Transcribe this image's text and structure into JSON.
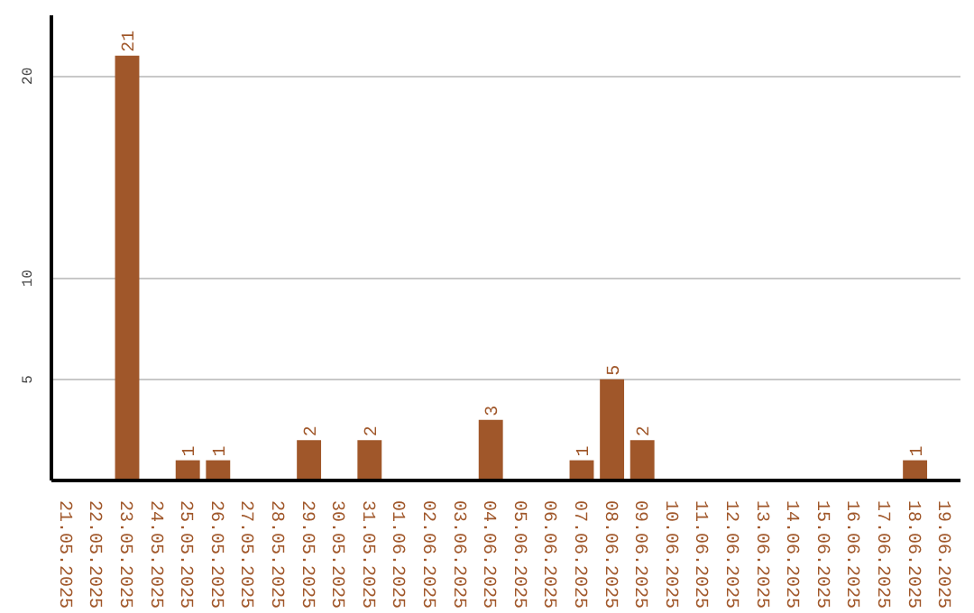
{
  "chart_data": {
    "type": "bar",
    "categories": [
      "21.05.2025",
      "22.05.2025",
      "23.05.2025",
      "24.05.2025",
      "25.05.2025",
      "26.05.2025",
      "27.05.2025",
      "28.05.2025",
      "29.05.2025",
      "30.05.2025",
      "31.05.2025",
      "01.06.2025",
      "02.06.2025",
      "03.06.2025",
      "04.06.2025",
      "05.06.2025",
      "06.06.2025",
      "07.06.2025",
      "08.06.2025",
      "09.06.2025",
      "10.06.2025",
      "11.06.2025",
      "12.06.2025",
      "13.06.2025",
      "14.06.2025",
      "15.06.2025",
      "16.06.2025",
      "17.06.2025",
      "18.06.2025",
      "19.06.2025"
    ],
    "values": [
      0,
      0,
      21,
      0,
      1,
      1,
      0,
      0,
      2,
      0,
      2,
      0,
      0,
      0,
      3,
      0,
      0,
      1,
      5,
      2,
      0,
      0,
      0,
      0,
      0,
      0,
      0,
      0,
      1,
      0
    ],
    "value_labels": [
      null,
      null,
      "21",
      null,
      "1",
      "1",
      null,
      null,
      "2",
      null,
      "2",
      null,
      null,
      null,
      "3",
      null,
      null,
      "1",
      "5",
      "2",
      null,
      null,
      null,
      null,
      null,
      null,
      null,
      null,
      "1",
      null
    ],
    "color": "#a0572a",
    "ylim": [
      0,
      23
    ],
    "yticks": [
      5,
      10,
      20
    ],
    "grid": "y"
  }
}
